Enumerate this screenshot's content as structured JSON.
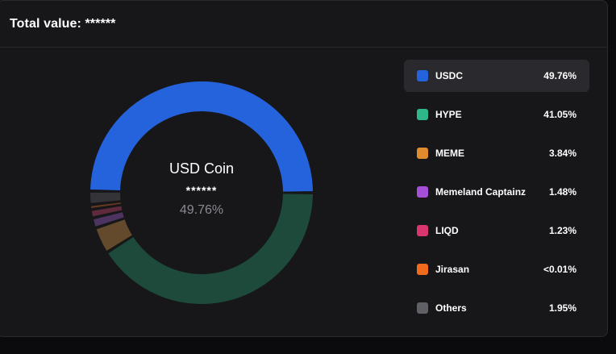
{
  "header": {
    "title": "Total value: ******"
  },
  "donut": {
    "center_name": "USD Coin",
    "center_value": "******",
    "center_percent": "49.76%"
  },
  "chart_data": {
    "type": "pie",
    "categories": [
      "USDC",
      "HYPE",
      "MEME",
      "Memeland Captainz",
      "LIQD",
      "Jirasan",
      "Others"
    ],
    "values": [
      49.76,
      41.05,
      3.84,
      1.48,
      1.23,
      0.01,
      1.95
    ],
    "labels": [
      "49.76%",
      "41.05%",
      "3.84%",
      "1.48%",
      "1.23%",
      "<0.01%",
      "1.95%"
    ],
    "legend": "right"
  },
  "legend": {
    "items": [
      {
        "label": "USDC",
        "percent": "49.76%",
        "color": "#2563dc",
        "arc_color": "#2563dc",
        "active": true
      },
      {
        "label": "HYPE",
        "percent": "41.05%",
        "color": "#2eb88a",
        "arc_color": "#1d4a3a",
        "active": false
      },
      {
        "label": "MEME",
        "percent": "3.84%",
        "color": "#e08c2c",
        "arc_color": "#634a2c",
        "active": false
      },
      {
        "label": "Memeland Captainz",
        "percent": "1.48%",
        "color": "#a54fd8",
        "arc_color": "#4d3460",
        "active": false
      },
      {
        "label": "LIQD",
        "percent": "1.23%",
        "color": "#d9366f",
        "arc_color": "#5e2a3c",
        "active": false
      },
      {
        "label": "Jirasan",
        "percent": "<0.01%",
        "color": "#f26a1b",
        "arc_color": "#6a3a20",
        "active": false
      },
      {
        "label": "Others",
        "percent": "1.95%",
        "color": "#5f5f66",
        "arc_color": "#333338",
        "active": false
      }
    ]
  }
}
